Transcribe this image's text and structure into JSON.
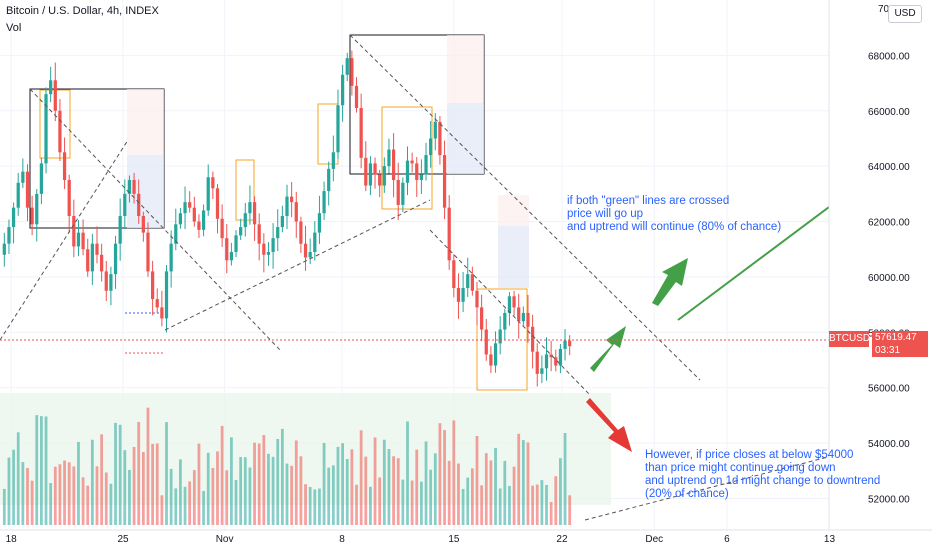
{
  "header": {
    "title": "Bitcoin / U.S. Dollar, 4h, INDEX",
    "indicator": "Vol",
    "currency_button": "USD"
  },
  "price_tag": {
    "symbol": "BTCUSD",
    "price": "57619.47",
    "countdown": "03:31"
  },
  "notes": {
    "bullish": "if both \"green\" lines are crossed\nprice will go up\nand uptrend will continue (80% of chance)",
    "bearish": "However, if price closes at below $54000\nthan price might continue going down\nand uptrend on 1d might change to downtrend\n(20% of chance)"
  },
  "colors": {
    "up": "#26a69a",
    "down": "#ef5350",
    "annotation": "#2962ff",
    "arrow_green": "#43a047",
    "arrow_red": "#e53935",
    "fib_box": "#f5a623",
    "trendline": "#555555"
  },
  "chart_data": {
    "type": "candlestick",
    "title": "Bitcoin / U.S. Dollar, 4h, INDEX",
    "y_axis": {
      "min": 50500,
      "max": 70000,
      "ticks": [
        "52000.00",
        "54000.00",
        "56000.00",
        "58000.00",
        "60000.00",
        "62000.00",
        "64000.00",
        "66000.00",
        "68000.00"
      ],
      "top_label": "70"
    },
    "x_axis": {
      "ticks": [
        {
          "label": "18",
          "pos": 0.012
        },
        {
          "label": "25",
          "pos": 0.132
        },
        {
          "label": "Nov",
          "pos": 0.241
        },
        {
          "label": "8",
          "pos": 0.367
        },
        {
          "label": "15",
          "pos": 0.487
        },
        {
          "label": "22",
          "pos": 0.603
        },
        {
          "label": "Dec",
          "pos": 0.702
        },
        {
          "label": "6",
          "pos": 0.78
        },
        {
          "label": "13",
          "pos": 0.89
        }
      ]
    },
    "closes": [
      61200,
      61800,
      62500,
      63400,
      63800,
      62500,
      61900,
      63000,
      64100,
      66600,
      67100,
      66000,
      64500,
      63500,
      62200,
      61100,
      61600,
      61000,
      60200,
      61200,
      60800,
      60200,
      59500,
      60100,
      61200,
      62200,
      63000,
      63500,
      63000,
      62200,
      61600,
      60200,
      59200,
      58900,
      58500,
      60200,
      61200,
      61900,
      62300,
      62700,
      62500,
      62000,
      61700,
      62400,
      63600,
      63200,
      62100,
      61400,
      60600,
      60900,
      61500,
      61800,
      62300,
      62700,
      61900,
      61200,
      60800,
      60900,
      61400,
      61800,
      62200,
      62900,
      62700,
      62000,
      61200,
      60700,
      60900,
      61600,
      62300,
      63100,
      63900,
      64500,
      66200,
      67300,
      67900,
      66900,
      66100,
      64300,
      63300,
      64100,
      63700,
      63300,
      64000,
      64600,
      63500,
      62600,
      63400,
      64200,
      64100,
      63500,
      63700,
      64400,
      65000,
      65600,
      64400,
      62500,
      60600,
      59600,
      59100,
      59600,
      60100,
      59500,
      58900,
      58100,
      57200,
      56800,
      57600,
      58100,
      58700,
      59300,
      58900,
      58400,
      58700,
      58200,
      57300,
      56500,
      56700,
      57200,
      57100,
      56800,
      57400,
      57700,
      57500
    ],
    "current_price": 57619.47,
    "volume_note": "relative volume bars shown below price"
  }
}
